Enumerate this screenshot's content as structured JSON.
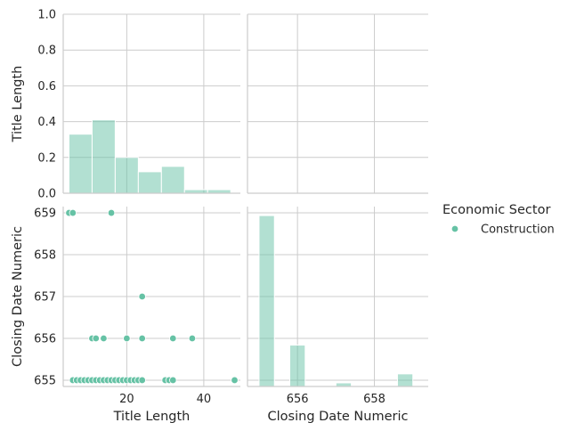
{
  "chart_data": {
    "type": "pairplot",
    "variables": [
      "Title Length",
      "Closing Date Numeric"
    ],
    "hue": {
      "title": "Economic Sector",
      "levels": [
        {
          "name": "Construction",
          "color": "#66c2a5"
        }
      ]
    },
    "grid": true,
    "legend_position": "right",
    "panels": [
      {
        "id": "title-length-hist",
        "row": 0,
        "col": 0,
        "type": "bar",
        "xlim": [
          3.5,
          49.5
        ],
        "ylim": [
          0,
          1.0
        ],
        "xticks": [],
        "yticks": [
          "0.0",
          "0.2",
          "0.4",
          "0.6",
          "0.8",
          "1.0"
        ],
        "ylabel": "Title Length",
        "bins": [
          {
            "x0": 5.0,
            "x1": 11.0,
            "value": 0.33
          },
          {
            "x0": 11.0,
            "x1": 17.0,
            "value": 0.41
          },
          {
            "x0": 17.0,
            "x1": 23.0,
            "value": 0.2
          },
          {
            "x0": 23.0,
            "x1": 29.0,
            "value": 0.12
          },
          {
            "x0": 29.0,
            "x1": 35.0,
            "value": 0.15
          },
          {
            "x0": 35.0,
            "x1": 41.0,
            "value": 0.02
          },
          {
            "x0": 41.0,
            "x1": 47.0,
            "value": 0.02
          }
        ]
      },
      {
        "id": "empty-upper-right",
        "row": 0,
        "col": 1,
        "type": "empty",
        "xlim": [
          654.7,
          659.4
        ],
        "ylim": [
          0,
          1.0
        ]
      },
      {
        "id": "scatter-lower-left",
        "row": 1,
        "col": 0,
        "type": "scatter",
        "xlim": [
          3.5,
          49.5
        ],
        "ylim": [
          654.85,
          659.15
        ],
        "xticks": [
          "20",
          "40"
        ],
        "yticks": [
          "655",
          "656",
          "657",
          "658",
          "659"
        ],
        "xlabel": "Title Length",
        "ylabel": "Closing Date Numeric",
        "points": [
          [
            5,
            659
          ],
          [
            6,
            659
          ],
          [
            16,
            659
          ],
          [
            24,
            657
          ],
          [
            11,
            656
          ],
          [
            12,
            656
          ],
          [
            14,
            656
          ],
          [
            20,
            656
          ],
          [
            24,
            656
          ],
          [
            32,
            656
          ],
          [
            37,
            656
          ],
          [
            6,
            655
          ],
          [
            7,
            655
          ],
          [
            8,
            655
          ],
          [
            9,
            655
          ],
          [
            10,
            655
          ],
          [
            11,
            655
          ],
          [
            12,
            655
          ],
          [
            13,
            655
          ],
          [
            14,
            655
          ],
          [
            15,
            655
          ],
          [
            16,
            655
          ],
          [
            17,
            655
          ],
          [
            18,
            655
          ],
          [
            19,
            655
          ],
          [
            20,
            655
          ],
          [
            21,
            655
          ],
          [
            22,
            655
          ],
          [
            23,
            655
          ],
          [
            24,
            655
          ],
          [
            30,
            655
          ],
          [
            31,
            655
          ],
          [
            32,
            655
          ],
          [
            48,
            655
          ]
        ]
      },
      {
        "id": "closing-date-hist",
        "row": 1,
        "col": 1,
        "type": "bar",
        "xlim": [
          654.7,
          659.4
        ],
        "ylim": [
          0,
          1.0
        ],
        "xticks": [
          "656",
          "658"
        ],
        "yticks": [],
        "xlabel": "Closing Date Numeric",
        "bins": [
          {
            "x0": 655.0,
            "x1": 655.4,
            "value": 0.95
          },
          {
            "x0": 655.8,
            "x1": 656.2,
            "value": 0.23
          },
          {
            "x0": 656.6,
            "x1": 657.0,
            "value": 0.0
          },
          {
            "x0": 657.0,
            "x1": 657.4,
            "value": 0.02
          },
          {
            "x0": 658.6,
            "x1": 659.0,
            "value": 0.07
          }
        ]
      }
    ]
  }
}
